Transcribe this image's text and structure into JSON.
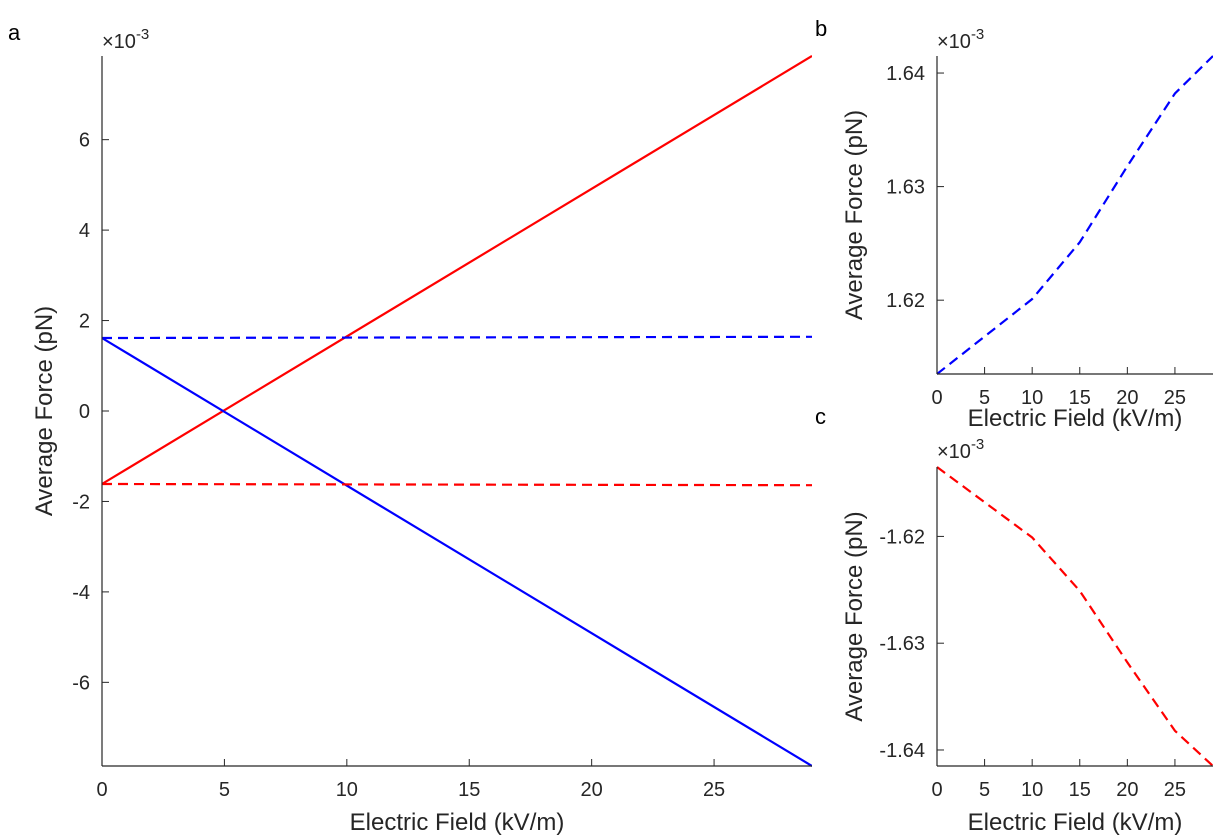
{
  "chart_data": [
    {
      "panel": "a",
      "type": "line",
      "xlabel": "Electric Field (kV/m)",
      "ylabel": "Average Force (pN)",
      "y_exponent": "-3",
      "xlim": [
        0,
        29
      ],
      "ylim": [
        -7.85,
        7.85
      ],
      "xticks": [
        "0",
        "5",
        "10",
        "15",
        "20",
        "25"
      ],
      "yticks": [
        "6",
        "4",
        "2",
        "0",
        "-2",
        "-4",
        "-6"
      ],
      "series": [
        {
          "color": "#ff0000",
          "style": "solid",
          "x": [
            0,
            29
          ],
          "y": [
            -1.614,
            7.85
          ]
        },
        {
          "color": "#0000ff",
          "style": "solid",
          "x": [
            0,
            29
          ],
          "y": [
            1.614,
            -7.85
          ]
        },
        {
          "color": "#0000ff",
          "style": "dashed",
          "x": [
            0,
            29
          ],
          "y": [
            1.614,
            1.641
          ]
        },
        {
          "color": "#ff0000",
          "style": "dashed",
          "x": [
            0,
            29
          ],
          "y": [
            -1.614,
            -1.641
          ]
        }
      ]
    },
    {
      "panel": "b",
      "type": "line",
      "xlabel": "Electric Field (kV/m)",
      "ylabel": "Average Force (pN)",
      "y_exponent": "-3",
      "xlim": [
        0,
        29
      ],
      "ylim": [
        1.6135,
        1.6415
      ],
      "xticks": [
        "0",
        "5",
        "10",
        "15",
        "20",
        "25"
      ],
      "yticks": [
        "1.64",
        "1.63",
        "1.62"
      ],
      "series": [
        {
          "color": "#0000ff",
          "style": "dashed",
          "x": [
            0,
            5,
            10,
            15,
            20,
            25,
            29
          ],
          "y": [
            1.6135,
            1.6168,
            1.6201,
            1.6251,
            1.6318,
            1.6382,
            1.6415
          ]
        }
      ]
    },
    {
      "panel": "c",
      "type": "line",
      "xlabel": "Electric Field (kV/m)",
      "ylabel": "Average Force (pN)",
      "y_exponent": "-3",
      "xlim": [
        0,
        29
      ],
      "ylim": [
        -1.6415,
        -1.6135
      ],
      "xticks": [
        "0",
        "5",
        "10",
        "15",
        "20",
        "25"
      ],
      "yticks": [
        "-1.62",
        "-1.63",
        "-1.64"
      ],
      "series": [
        {
          "color": "#ff0000",
          "style": "dashed",
          "x": [
            0,
            5,
            10,
            15,
            20,
            25,
            29
          ],
          "y": [
            -1.6135,
            -1.6168,
            -1.6201,
            -1.6251,
            -1.6318,
            -1.6382,
            -1.6415
          ]
        }
      ]
    }
  ],
  "exponent_prefix": "×10"
}
